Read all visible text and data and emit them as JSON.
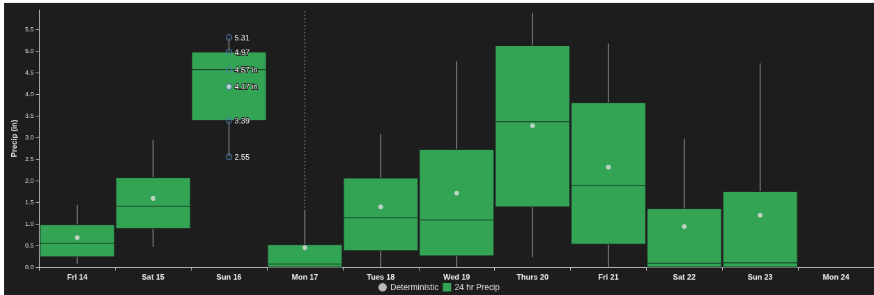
{
  "chart_data": {
    "type": "box",
    "ylabel": "Precip (in)",
    "categories": [
      "Fri 14",
      "Sat 15",
      "Sun 16",
      "Mon 17",
      "Tues 18",
      "Wed 19",
      "Thurs 20",
      "Fri 21",
      "Sat 22",
      "Sun 23",
      "Mon 24"
    ],
    "ylim": [
      0,
      5.95
    ],
    "yticks": [
      {
        "value": 0,
        "label": "0.0"
      },
      0.5,
      {
        "value": 1,
        "label": "1.0"
      },
      1.5,
      {
        "value": 2,
        "label": "2.0"
      },
      2.5,
      {
        "value": 3,
        "label": "3.0"
      },
      3.5,
      {
        "value": 4,
        "label": "4.0"
      },
      4.5,
      {
        "value": 5,
        "label": "5.0"
      },
      5.5
    ],
    "series": [
      {
        "type": "scatter",
        "name": "Deterministic",
        "color": "#e0e0e0",
        "values": [
          0.68,
          1.59,
          4.17,
          0.45,
          1.39,
          1.71,
          3.27,
          2.31,
          0.94,
          1.2,
          null
        ]
      },
      {
        "name": "24 hr Precip",
        "color": "#33a354",
        "boxes": [
          {
            "low": 0.07,
            "q1": 0.24,
            "median": 0.55,
            "q3": 0.98,
            "high": 1.44
          },
          {
            "low": 0.47,
            "q1": 0.89,
            "median": 1.41,
            "q3": 2.07,
            "high": 2.94
          },
          {
            "low": 2.55,
            "q1": 3.39,
            "median": 4.57,
            "q3": 4.97,
            "high": 5.31
          },
          {
            "low": 0,
            "q1": 0,
            "median": 0.07,
            "q3": 0.52,
            "high": 1.32
          },
          {
            "low": 0,
            "q1": 0.38,
            "median": 1.14,
            "q3": 2.06,
            "high": 3.08
          },
          {
            "low": 0,
            "q1": 0.26,
            "median": 1.09,
            "q3": 2.72,
            "high": 4.76
          },
          {
            "low": 0.23,
            "q1": 1.39,
            "median": 3.36,
            "q3": 5.12,
            "high": 5.88
          },
          {
            "low": 0,
            "q1": 0.53,
            "median": 1.89,
            "q3": 3.8,
            "high": 5.17
          },
          {
            "low": 0,
            "q1": 0,
            "median": 0.09,
            "q3": 1.35,
            "high": 2.97
          },
          {
            "low": 0,
            "q1": 0,
            "median": 0.1,
            "q3": 1.75,
            "high": 4.71
          },
          null
        ]
      }
    ],
    "annotations": [
      {
        "text": "5.31",
        "x": "Sun 16",
        "y": 5.31
      },
      {
        "text": "4.97",
        "x": "Sun 16",
        "y": 4.97
      },
      {
        "text": "4.57 in",
        "x": "Sun 16",
        "y": 4.57
      },
      {
        "text": "4.17 in",
        "x": "Sun 16",
        "y": 4.17
      },
      {
        "text": "3.39",
        "x": "Sun 16",
        "y": 3.39
      },
      {
        "text": "2.55",
        "x": "Sun 16",
        "y": 2.55
      }
    ],
    "ref_lines": [
      {
        "axis": "x",
        "value": "Mon 17",
        "color": "#aaaaaa",
        "line_style": "dotted"
      }
    ],
    "legend": "bottom",
    "grid": false
  }
}
